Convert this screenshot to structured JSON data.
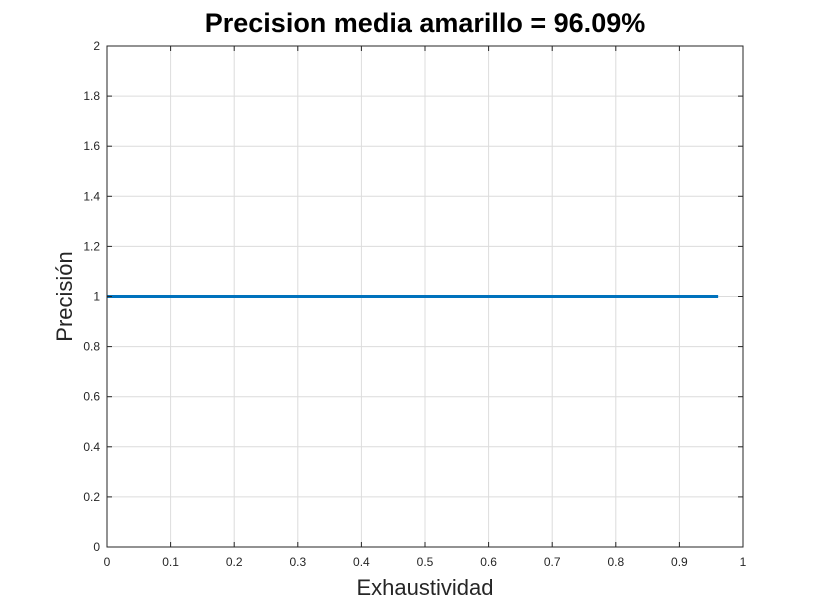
{
  "chart_data": {
    "type": "line",
    "title": "Precision media amarillo = 96.09%",
    "xlabel": "Exhaustividad",
    "ylabel": "Precisión",
    "xlim": [
      0,
      1
    ],
    "ylim": [
      0,
      2
    ],
    "xticks": [
      0,
      0.1,
      0.2,
      0.3,
      0.4,
      0.5,
      0.6,
      0.7,
      0.8,
      0.9,
      1
    ],
    "xtick_labels": [
      "0",
      "0.1",
      "0.2",
      "0.3",
      "0.4",
      "0.5",
      "0.6",
      "0.7",
      "0.8",
      "0.9",
      "1"
    ],
    "yticks": [
      0,
      0.2,
      0.4,
      0.6,
      0.8,
      1,
      1.2,
      1.4,
      1.6,
      1.8,
      2
    ],
    "ytick_labels": [
      "0",
      "0.2",
      "0.4",
      "0.6",
      "0.8",
      "1",
      "1.2",
      "1.4",
      "1.6",
      "1.8",
      "2"
    ],
    "grid": true,
    "series": [
      {
        "color": "#0072bd",
        "x": [
          0,
          0.9609
        ],
        "y": [
          1,
          1
        ]
      }
    ]
  }
}
